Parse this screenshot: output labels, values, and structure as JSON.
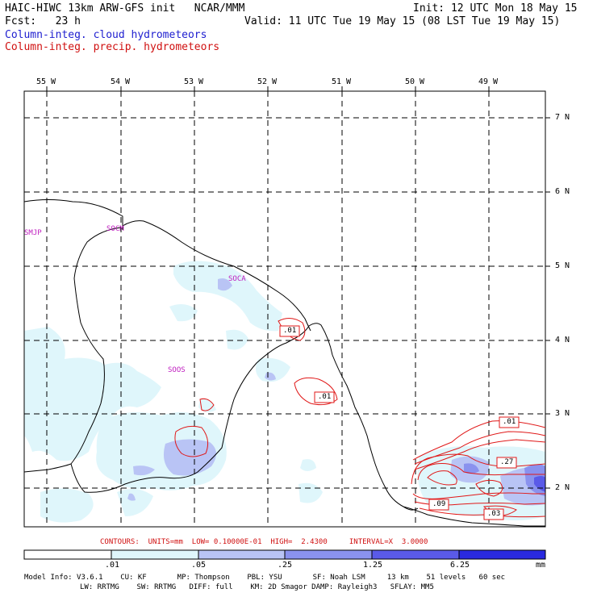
{
  "header": {
    "line1_left": "HAIC-HIWC 13km ARW-GFS init   NCAR/MMM",
    "line1_right": "Init: 12 UTC Mon 18 May 15",
    "line2_left": "Fcst:   23 h",
    "line2_right": "Valid: 11 UTC Tue 19 May 15 (08 LST Tue 19 May 15)",
    "field_cloud": "Column-integ. cloud hydrometeors",
    "field_precip": "Column-integ. precip. hydrometeors"
  },
  "colors": {
    "cloud_text": "#2020d0",
    "precip_text": "#d01010",
    "shade_levels": [
      "#ffffff",
      "#dff6fb",
      "#b9c4f5",
      "#8a92ee",
      "#5a5ae8",
      "#2a2ae0"
    ],
    "contour": "#e01818"
  },
  "map": {
    "lon_labels": [
      "55 W",
      "54 W",
      "53 W",
      "52 W",
      "51 W",
      "50 W",
      "49 W"
    ],
    "lat_labels": [
      "7 N",
      "6 N",
      "5 N",
      "4 N",
      "3 N",
      "2 N"
    ],
    "stations": [
      "SMJP",
      "SOCM",
      "SOCA",
      "SOOS"
    ],
    "contour_labels": [
      ".01",
      ".01",
      ".01",
      ".27",
      ".09",
      ".03"
    ]
  },
  "footer": {
    "contours_line": "CONTOURS:  UNITS=mm  LOW= 0.10000E-01  HIGH=  2.4300     INTERVAL=X  3.0000",
    "scale_labels": [
      ".01",
      ".05",
      ".25",
      "1.25",
      "6.25"
    ],
    "scale_unit": "mm",
    "model_info_1": "Model Info: V3.6.1    CU: KF       MP: Thompson    PBL: YSU       SF: Noah LSM     13 km    51 levels   60 sec",
    "model_info_2": "LW: RRTMG    SW: RRTMG   DIFF: full    KM: 2D Smagor DAMP: Rayleigh3   SFLAY: MM5"
  }
}
